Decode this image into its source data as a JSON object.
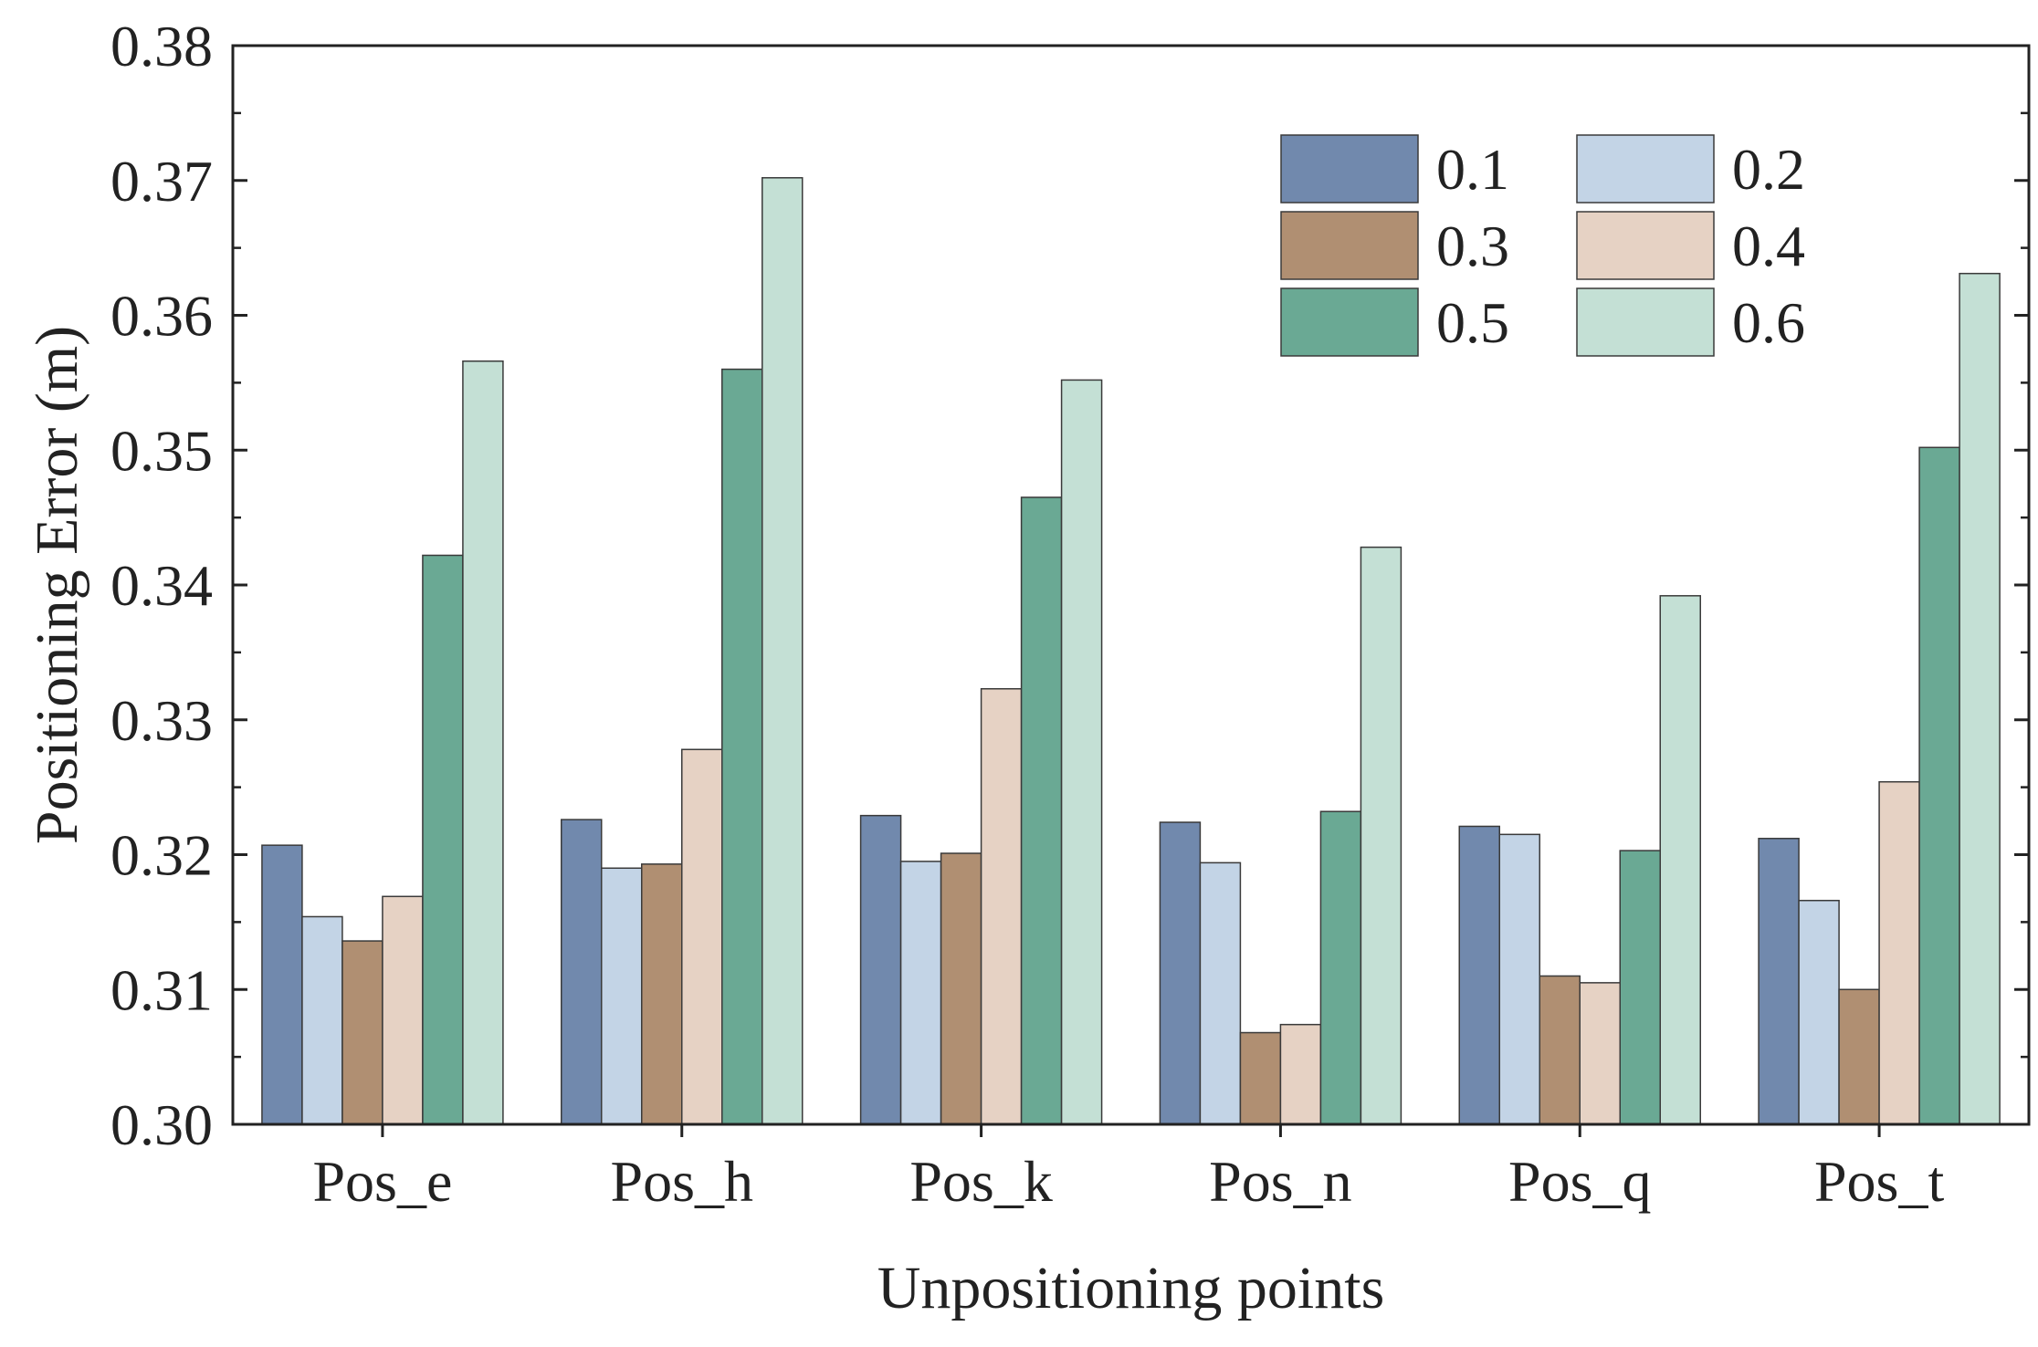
{
  "chart_data": {
    "type": "bar",
    "title": "",
    "xlabel": "Unpositioning points",
    "ylabel": "Positioning Error (m)",
    "ylim": [
      0.3,
      0.38
    ],
    "yticks": [
      "0.30",
      "0.31",
      "0.32",
      "0.33",
      "0.34",
      "0.35",
      "0.36",
      "0.37",
      "0.38"
    ],
    "grid": false,
    "legend_position": "top-right",
    "categories": [
      "Pos_e",
      "Pos_h",
      "Pos_k",
      "Pos_n",
      "Pos_q",
      "Pos_t"
    ],
    "series": [
      {
        "name": "0.1",
        "color": "#7189ad",
        "values": [
          0.3207,
          0.3226,
          0.3229,
          0.3224,
          0.3221,
          0.3212
        ]
      },
      {
        "name": "0.2",
        "color": "#c3d4e6",
        "values": [
          0.3154,
          0.319,
          0.3195,
          0.3194,
          0.3215,
          0.3166
        ]
      },
      {
        "name": "0.3",
        "color": "#b08f72",
        "values": [
          0.3136,
          0.3193,
          0.3201,
          0.3068,
          0.311,
          0.31
        ]
      },
      {
        "name": "0.4",
        "color": "#e6d2c4",
        "values": [
          0.3169,
          0.3278,
          0.3323,
          0.3074,
          0.3105,
          0.3254
        ]
      },
      {
        "name": "0.5",
        "color": "#6aa994",
        "values": [
          0.3422,
          0.356,
          0.3465,
          0.3232,
          0.3203,
          0.3502
        ]
      },
      {
        "name": "0.6",
        "color": "#c4e0d5",
        "values": [
          0.3566,
          0.3702,
          0.3552,
          0.3428,
          0.3392,
          0.3631
        ]
      }
    ]
  }
}
